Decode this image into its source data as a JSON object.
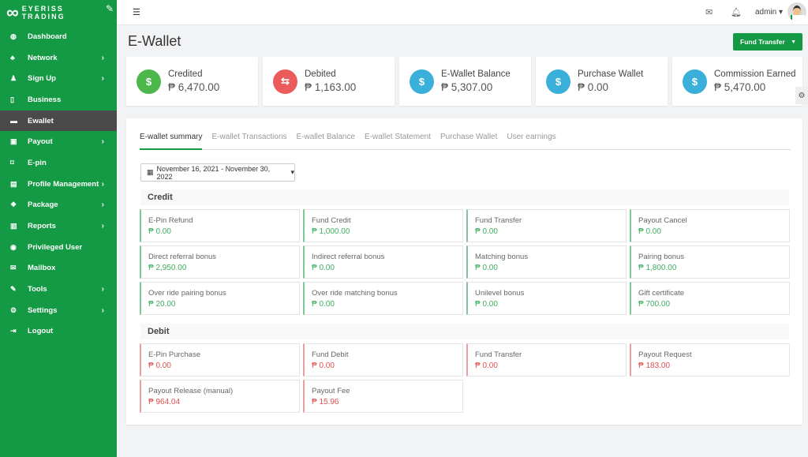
{
  "brand": {
    "name_line1": "EYERISS",
    "name_line2": "TRADING"
  },
  "sidebar": {
    "items": [
      {
        "label": "Dashboard",
        "icon": "dashboard-icon",
        "glyph": "◍",
        "chev": false
      },
      {
        "label": "Network",
        "icon": "sitemap-icon",
        "glyph": "♣",
        "chev": true
      },
      {
        "label": "Sign Up",
        "icon": "user-plus-icon",
        "glyph": "♟",
        "chev": true
      },
      {
        "label": "Business",
        "icon": "tablet-icon",
        "glyph": "▯",
        "chev": false
      },
      {
        "label": "Ewallet",
        "icon": "briefcase-icon",
        "glyph": "▬",
        "chev": false,
        "active": true
      },
      {
        "label": "Payout",
        "icon": "money-icon",
        "glyph": "▣",
        "chev": true
      },
      {
        "label": "E-pin",
        "icon": "bookmark-icon",
        "glyph": "⌑",
        "chev": false
      },
      {
        "label": "Profile Management",
        "icon": "id-card-icon",
        "glyph": "▤",
        "chev": true
      },
      {
        "label": "Package",
        "icon": "cubes-icon",
        "glyph": "❖",
        "chev": true
      },
      {
        "label": "Reports",
        "icon": "bar-chart-icon",
        "glyph": "▥",
        "chev": true
      },
      {
        "label": "Privileged User",
        "icon": "user-circle-icon",
        "glyph": "◉",
        "chev": false
      },
      {
        "label": "Mailbox",
        "icon": "envelope-icon",
        "glyph": "✉",
        "chev": false
      },
      {
        "label": "Tools",
        "icon": "wrench-icon",
        "glyph": "✎",
        "chev": true
      },
      {
        "label": "Settings",
        "icon": "cogs-icon",
        "glyph": "⚙",
        "chev": true
      },
      {
        "label": "Logout",
        "icon": "sign-out-icon",
        "glyph": "⇥",
        "chev": false
      }
    ]
  },
  "topbar": {
    "user": "admin ▾"
  },
  "page": {
    "title": "E-Wallet",
    "fund_transfer": "Fund Transfer"
  },
  "cards": [
    {
      "title": "Credited",
      "value": "₱ 6,470.00",
      "color": "#4cb84c",
      "glyph": "$"
    },
    {
      "title": "Debited",
      "value": "₱ 1,163.00",
      "color": "#ec5b5b",
      "glyph": "⇆"
    },
    {
      "title": "E-Wallet Balance",
      "value": "₱ 5,307.00",
      "color": "#3aafd9",
      "glyph": "$"
    },
    {
      "title": "Purchase Wallet",
      "value": "₱ 0.00",
      "color": "#3aafd9",
      "glyph": "$"
    },
    {
      "title": "Commission Earned",
      "value": "₱ 5,470.00",
      "color": "#3aafd9",
      "glyph": "$"
    }
  ],
  "tabs": [
    "E-wallet summary",
    "E-wallet Transactions",
    "E-wallet Balance",
    "E-wallet Statement",
    "Purchase Wallet",
    "User earnings"
  ],
  "date_range": "November 16, 2021 - November 30, 2022",
  "credit": {
    "title": "Credit",
    "items": [
      {
        "label": "E-Pin Refund",
        "amount": "₱ 0.00"
      },
      {
        "label": "Fund Credit",
        "amount": "₱ 1,000.00"
      },
      {
        "label": "Fund Transfer",
        "amount": "₱ 0.00"
      },
      {
        "label": "Payout Cancel",
        "amount": "₱ 0.00"
      },
      {
        "label": "Direct referral bonus",
        "amount": "₱ 2,950.00"
      },
      {
        "label": "Indirect referral bonus",
        "amount": "₱ 0.00"
      },
      {
        "label": "Matching bonus",
        "amount": "₱ 0.00"
      },
      {
        "label": "Pairing bonus",
        "amount": "₱ 1,800.00"
      },
      {
        "label": "Over ride pairing bonus",
        "amount": "₱ 20.00"
      },
      {
        "label": "Over ride matching bonus",
        "amount": "₱ 0.00"
      },
      {
        "label": "Unilevel bonus",
        "amount": "₱ 0.00"
      },
      {
        "label": "Gift certificate",
        "amount": "₱ 700.00"
      }
    ]
  },
  "debit": {
    "title": "Debit",
    "items": [
      {
        "label": "E-Pin Purchase",
        "amount": "₱ 0.00"
      },
      {
        "label": "Fund Debit",
        "amount": "₱ 0.00"
      },
      {
        "label": "Fund Transfer",
        "amount": "₱ 0.00"
      },
      {
        "label": "Payout Request",
        "amount": "₱ 183.00"
      },
      {
        "label": "Payout Release (manual)",
        "amount": "₱ 964.04"
      },
      {
        "label": "Payout Fee",
        "amount": "₱ 15.96"
      }
    ]
  }
}
